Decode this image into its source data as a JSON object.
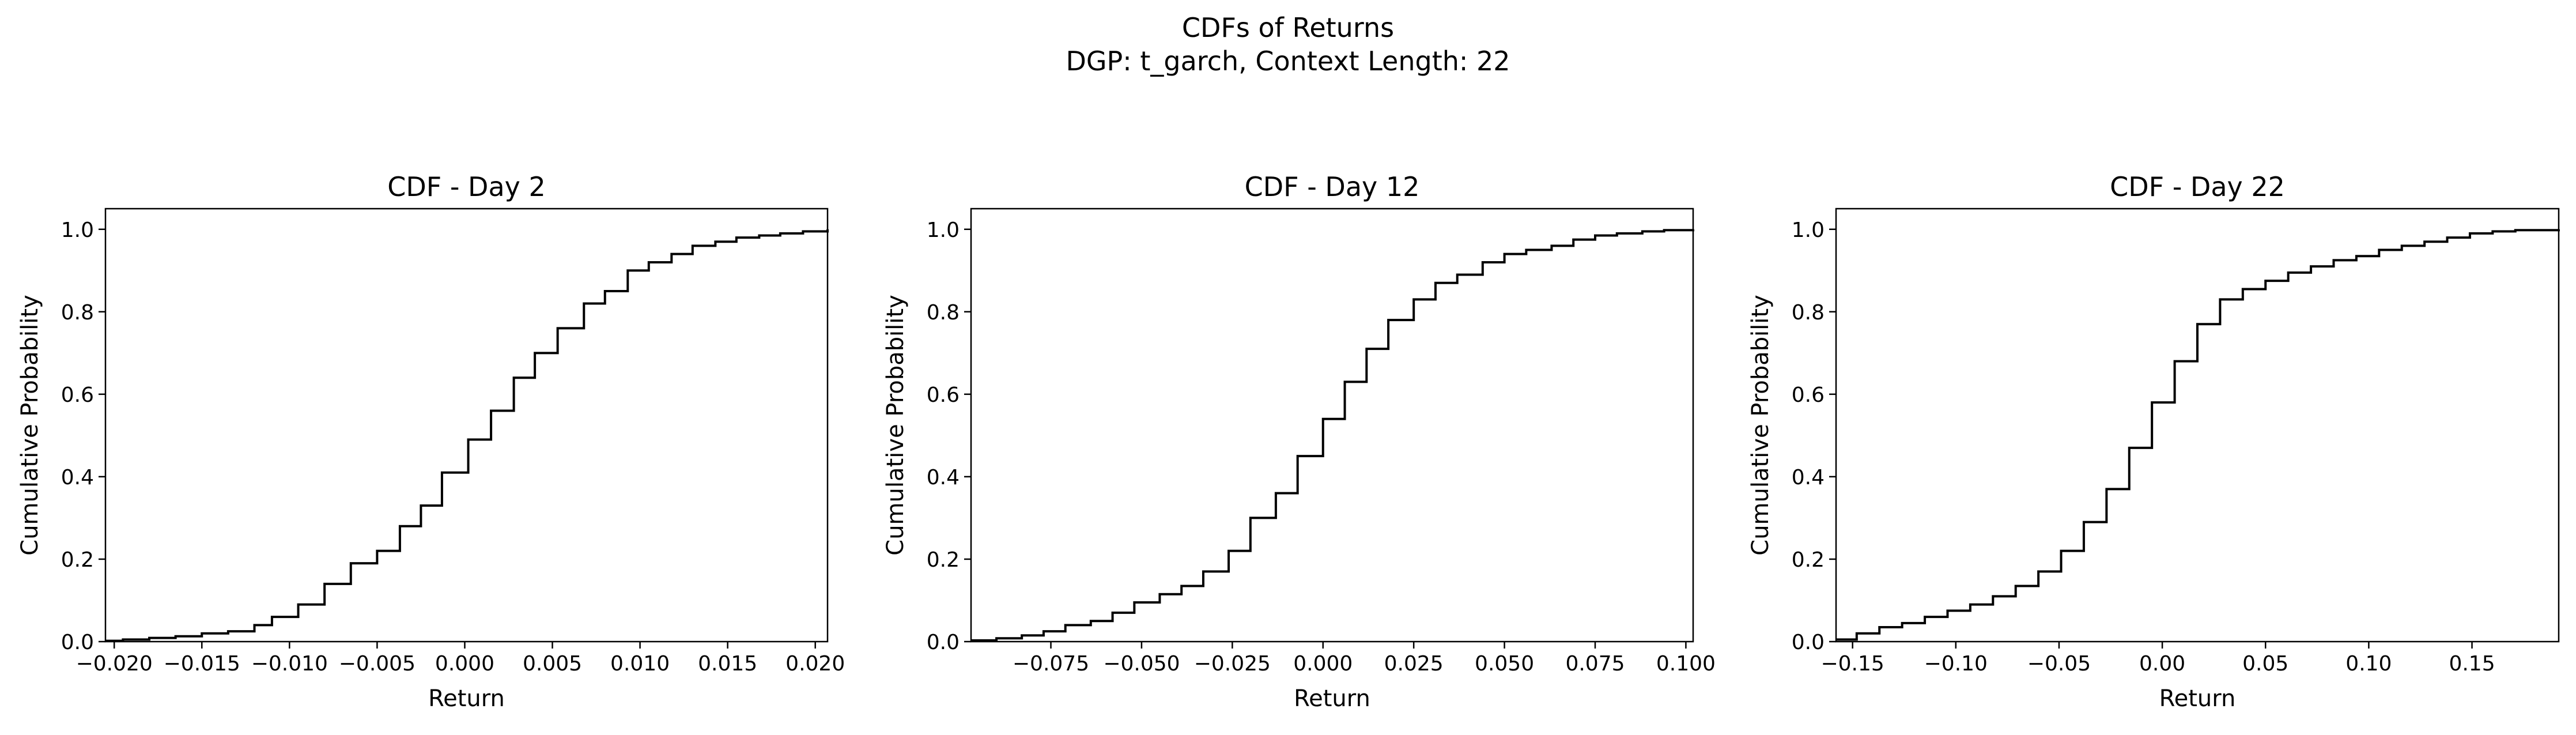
{
  "figure": {
    "title_line1": "CDFs of Returns",
    "title_line2": "DGP: t_garch, Context Length: 22"
  },
  "chart_data": [
    {
      "type": "line",
      "subtype": "step-ecdf",
      "title": "CDF - Day 2",
      "xlabel": "Return",
      "ylabel": "Cumulative Probability",
      "xlim": [
        -0.0205,
        0.0207
      ],
      "ylim": [
        0,
        1.05
      ],
      "xticks": [
        -0.02,
        -0.015,
        -0.01,
        -0.005,
        0.0,
        0.005,
        0.01,
        0.015,
        0.02
      ],
      "xtick_labels": [
        "−0.020",
        "−0.015",
        "−0.010",
        "−0.005",
        "0.000",
        "0.005",
        "0.010",
        "0.015",
        "0.020"
      ],
      "yticks": [
        0.0,
        0.2,
        0.4,
        0.6,
        0.8,
        1.0
      ],
      "ytick_labels": [
        "0.0",
        "0.2",
        "0.4",
        "0.6",
        "0.8",
        "1.0"
      ],
      "color": "#000000",
      "grid": false,
      "x": [
        -0.0205,
        -0.0195,
        -0.018,
        -0.0165,
        -0.015,
        -0.0135,
        -0.012,
        -0.011,
        -0.0095,
        -0.008,
        -0.0065,
        -0.005,
        -0.0037,
        -0.0025,
        -0.0013,
        0.0002,
        0.0015,
        0.0028,
        0.004,
        0.0053,
        0.0068,
        0.008,
        0.0093,
        0.0105,
        0.0118,
        0.013,
        0.0143,
        0.0155,
        0.0168,
        0.018,
        0.0193,
        0.0207
      ],
      "y": [
        0.002,
        0.005,
        0.009,
        0.013,
        0.02,
        0.025,
        0.04,
        0.06,
        0.09,
        0.14,
        0.19,
        0.22,
        0.28,
        0.33,
        0.41,
        0.49,
        0.56,
        0.64,
        0.7,
        0.76,
        0.82,
        0.85,
        0.9,
        0.92,
        0.94,
        0.96,
        0.97,
        0.98,
        0.985,
        0.99,
        0.995,
        1.0
      ]
    },
    {
      "type": "line",
      "subtype": "step-ecdf",
      "title": "CDF - Day 12",
      "xlabel": "Return",
      "ylabel": "Cumulative Probability",
      "xlim": [
        -0.097,
        0.102
      ],
      "ylim": [
        0,
        1.05
      ],
      "xticks": [
        -0.075,
        -0.05,
        -0.025,
        0.0,
        0.025,
        0.05,
        0.075,
        0.1
      ],
      "xtick_labels": [
        "−0.075",
        "−0.050",
        "−0.025",
        "0.000",
        "0.025",
        "0.050",
        "0.075",
        "0.100"
      ],
      "yticks": [
        0.0,
        0.2,
        0.4,
        0.6,
        0.8,
        1.0
      ],
      "ytick_labels": [
        "0.0",
        "0.2",
        "0.4",
        "0.6",
        "0.8",
        "1.0"
      ],
      "color": "#000000",
      "grid": false,
      "x": [
        -0.097,
        -0.09,
        -0.083,
        -0.077,
        -0.071,
        -0.064,
        -0.058,
        -0.052,
        -0.045,
        -0.039,
        -0.033,
        -0.026,
        -0.02,
        -0.013,
        -0.007,
        0.0,
        0.006,
        0.012,
        0.018,
        0.025,
        0.031,
        0.037,
        0.044,
        0.05,
        0.056,
        0.063,
        0.069,
        0.075,
        0.081,
        0.088,
        0.094,
        0.102
      ],
      "y": [
        0.003,
        0.008,
        0.015,
        0.025,
        0.04,
        0.05,
        0.07,
        0.095,
        0.115,
        0.135,
        0.17,
        0.22,
        0.3,
        0.36,
        0.45,
        0.54,
        0.63,
        0.71,
        0.78,
        0.83,
        0.87,
        0.89,
        0.92,
        0.94,
        0.95,
        0.96,
        0.975,
        0.985,
        0.99,
        0.995,
        0.998,
        1.0
      ]
    },
    {
      "type": "line",
      "subtype": "step-ecdf",
      "title": "CDF - Day 22",
      "xlabel": "Return",
      "ylabel": "Cumulative Probability",
      "xlim": [
        -0.158,
        0.192
      ],
      "ylim": [
        0,
        1.05
      ],
      "xticks": [
        -0.15,
        -0.1,
        -0.05,
        0.0,
        0.05,
        0.1,
        0.15
      ],
      "xtick_labels": [
        "−0.15",
        "−0.10",
        "−0.05",
        "0.00",
        "0.05",
        "0.10",
        "0.15"
      ],
      "yticks": [
        0.0,
        0.2,
        0.4,
        0.6,
        0.8,
        1.0
      ],
      "ytick_labels": [
        "0.0",
        "0.2",
        "0.4",
        "0.6",
        "0.8",
        "1.0"
      ],
      "color": "#000000",
      "grid": false,
      "x": [
        -0.158,
        -0.148,
        -0.137,
        -0.126,
        -0.115,
        -0.104,
        -0.093,
        -0.082,
        -0.071,
        -0.06,
        -0.049,
        -0.038,
        -0.027,
        -0.016,
        -0.005,
        0.006,
        0.017,
        0.028,
        0.039,
        0.05,
        0.061,
        0.072,
        0.083,
        0.094,
        0.105,
        0.116,
        0.127,
        0.138,
        0.149,
        0.16,
        0.171,
        0.192
      ],
      "y": [
        0.005,
        0.02,
        0.035,
        0.045,
        0.06,
        0.075,
        0.09,
        0.11,
        0.135,
        0.17,
        0.22,
        0.29,
        0.37,
        0.47,
        0.58,
        0.68,
        0.77,
        0.83,
        0.855,
        0.875,
        0.895,
        0.91,
        0.925,
        0.935,
        0.95,
        0.96,
        0.97,
        0.98,
        0.99,
        0.995,
        0.998,
        1.0
      ]
    }
  ]
}
